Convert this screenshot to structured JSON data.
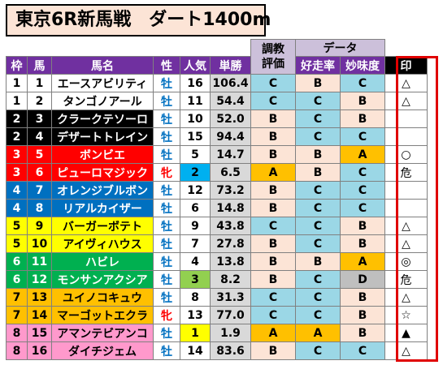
{
  "title": "東京6R新馬戦　ダート1400m",
  "headers": {
    "chokyo_line1": "調教",
    "chokyo_line2": "評価",
    "data": "データ",
    "waku": "枠",
    "uma": "馬",
    "name": "馬名",
    "sex": "性",
    "popularity": "人気",
    "odds": "単勝",
    "kosoritsu": "好走率",
    "mimido": "妙味度",
    "mark": "印"
  },
  "colors": {
    "frame_bg": [
      "",
      "#ffffff",
      "#000000",
      "#ff0000",
      "#0070c0",
      "#ffff00",
      "#00b050",
      "#ffc000",
      "#ff99cc"
    ],
    "frame_fg": [
      "",
      "#000000",
      "#ffffff",
      "#ffffff",
      "#ffffff",
      "#000000",
      "#ffffff",
      "#000000",
      "#000000"
    ],
    "mark_border": "#e00000",
    "header_purple": "#7030a0"
  },
  "rows": [
    {
      "waku": "1",
      "uma": "1",
      "name": "エースアビリティ",
      "sex": "牡",
      "pop": "16",
      "odds": "106.4",
      "chokyo": "C",
      "kosoritsu": "B",
      "mimido": "C",
      "mark": "△"
    },
    {
      "waku": "1",
      "uma": "2",
      "name": "タンゴノアール",
      "sex": "牡",
      "pop": "11",
      "odds": "54.4",
      "chokyo": "C",
      "kosoritsu": "C",
      "mimido": "B",
      "mark": "△"
    },
    {
      "waku": "2",
      "uma": "3",
      "name": "クラークテソーロ",
      "sex": "牡",
      "pop": "10",
      "odds": "52.0",
      "chokyo": "B",
      "kosoritsu": "C",
      "mimido": "B",
      "mark": ""
    },
    {
      "waku": "2",
      "uma": "4",
      "name": "デザートトレイン",
      "sex": "牡",
      "pop": "15",
      "odds": "94.4",
      "chokyo": "B",
      "kosoritsu": "C",
      "mimido": "C",
      "mark": ""
    },
    {
      "waku": "3",
      "uma": "5",
      "name": "ボンビエ",
      "sex": "牡",
      "pop": "5",
      "odds": "14.7",
      "chokyo": "B",
      "kosoritsu": "B",
      "mimido": "A",
      "mark": "○"
    },
    {
      "waku": "3",
      "uma": "6",
      "name": "ピューロマジック",
      "sex": "牝",
      "pop": "2",
      "odds": "6.5",
      "chokyo": "A",
      "kosoritsu": "B",
      "mimido": "C",
      "mark": "危"
    },
    {
      "waku": "4",
      "uma": "7",
      "name": "オレンジブルボン",
      "sex": "牡",
      "pop": "12",
      "odds": "73.2",
      "chokyo": "B",
      "kosoritsu": "C",
      "mimido": "C",
      "mark": ""
    },
    {
      "waku": "4",
      "uma": "8",
      "name": "リアルカイザー",
      "sex": "牡",
      "pop": "6",
      "odds": "14.8",
      "chokyo": "B",
      "kosoritsu": "C",
      "mimido": "C",
      "mark": ""
    },
    {
      "waku": "5",
      "uma": "9",
      "name": "バーガーボテト",
      "sex": "牡",
      "pop": "9",
      "odds": "43.8",
      "chokyo": "C",
      "kosoritsu": "C",
      "mimido": "B",
      "mark": "△"
    },
    {
      "waku": "5",
      "uma": "10",
      "name": "アイヴィハウス",
      "sex": "牡",
      "pop": "7",
      "odds": "27.8",
      "chokyo": "B",
      "kosoritsu": "C",
      "mimido": "B",
      "mark": "△"
    },
    {
      "waku": "6",
      "uma": "11",
      "name": "ハビレ",
      "sex": "牡",
      "pop": "4",
      "odds": "13.8",
      "chokyo": "B",
      "kosoritsu": "B",
      "mimido": "A",
      "mark": "◎"
    },
    {
      "waku": "6",
      "uma": "12",
      "name": "モンサンアクシア",
      "sex": "牡",
      "pop": "3",
      "odds": "8.2",
      "chokyo": "B",
      "kosoritsu": "C",
      "mimido": "D",
      "mark": "危"
    },
    {
      "waku": "7",
      "uma": "13",
      "name": "ユイノコキュウ",
      "sex": "牡",
      "pop": "8",
      "odds": "31.3",
      "chokyo": "C",
      "kosoritsu": "C",
      "mimido": "B",
      "mark": "△"
    },
    {
      "waku": "7",
      "uma": "14",
      "name": "マーゴットエクラ",
      "sex": "牝",
      "pop": "13",
      "odds": "77.0",
      "chokyo": "C",
      "kosoritsu": "C",
      "mimido": "B",
      "mark": "☆"
    },
    {
      "waku": "8",
      "uma": "15",
      "name": "アマンテビアンコ",
      "sex": "牡",
      "pop": "1",
      "odds": "1.9",
      "chokyo": "A",
      "kosoritsu": "A",
      "mimido": "B",
      "mark": "▲"
    },
    {
      "waku": "8",
      "uma": "16",
      "name": "ダイチジェム",
      "sex": "牡",
      "pop": "14",
      "odds": "83.6",
      "chokyo": "B",
      "kosoritsu": "C",
      "mimido": "C",
      "mark": "△"
    }
  ]
}
